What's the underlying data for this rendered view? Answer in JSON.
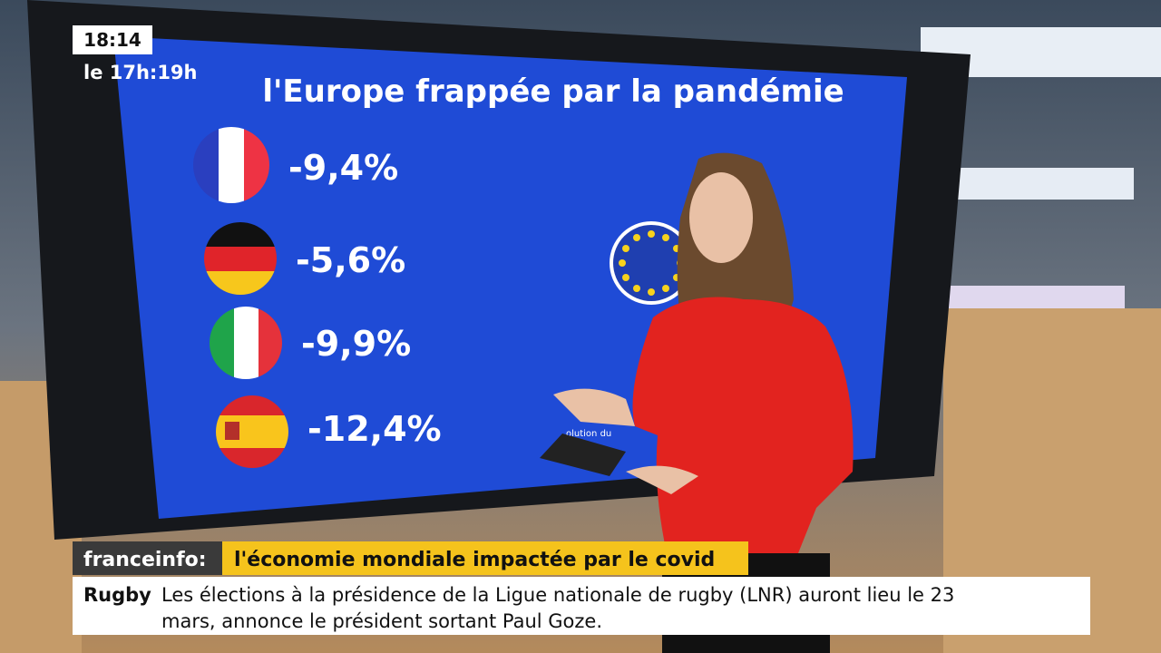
{
  "clock": {
    "time": "18:14",
    "slot": "le 17h:19h"
  },
  "screen": {
    "title": "l'Europe frappée par la pandémie",
    "rows": [
      {
        "value": "-9,4%"
      },
      {
        "value": "-5,6%"
      },
      {
        "value": "-9,9%"
      },
      {
        "value": "-12,4%"
      }
    ],
    "caption": "olution du"
  },
  "banner": {
    "brand": "franceinfo:",
    "headline": "l'économie mondiale impactée par le covid"
  },
  "ticker": {
    "tag": "Rugby",
    "line1": "Les élections à la présidence de la Ligue nationale de rugby (LNR) auront lieu le 23",
    "line2": "mars, annonce le président sortant Paul Goze."
  }
}
